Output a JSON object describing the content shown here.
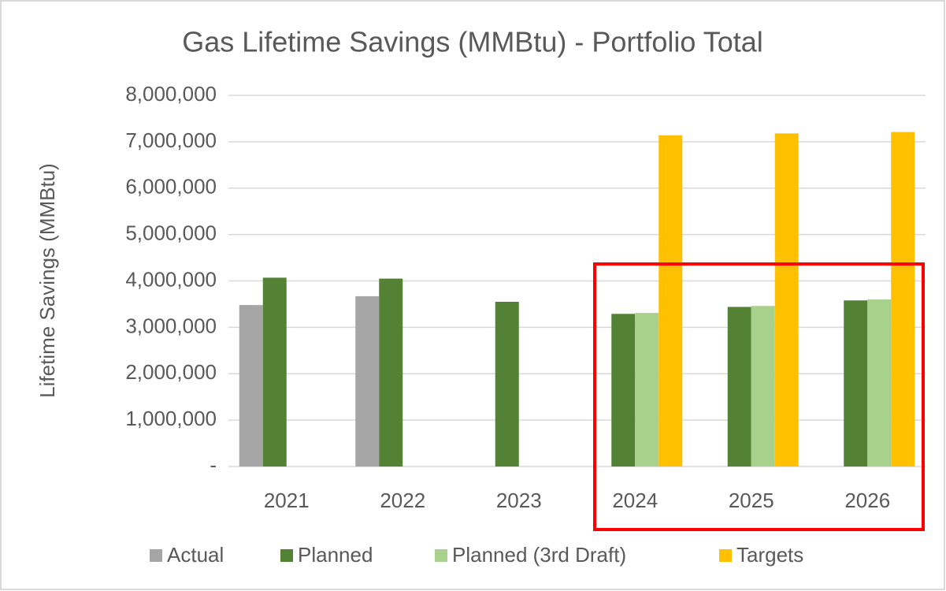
{
  "chart_data": {
    "type": "bar",
    "title": "Gas Lifetime Savings (MMBtu) - Portfolio Total",
    "y_label": "Lifetime Savings (MMBtu)",
    "categories": [
      "2021",
      "2022",
      "2023",
      "2024",
      "2025",
      "2026"
    ],
    "series": [
      {
        "name": "Actual",
        "color": "#a5a5a5",
        "values": [
          3480000,
          3670000,
          null,
          null,
          null,
          null
        ]
      },
      {
        "name": "Planned",
        "color": "#548235",
        "values": [
          4070000,
          4050000,
          3550000,
          3290000,
          3440000,
          3580000
        ]
      },
      {
        "name": "Planned (3rd Draft)",
        "color": "#a9d18e",
        "values": [
          null,
          null,
          null,
          3310000,
          3460000,
          3600000
        ]
      },
      {
        "name": "Targets",
        "color": "#ffc000",
        "values": [
          null,
          null,
          null,
          7140000,
          7180000,
          7210000
        ]
      }
    ],
    "ylim": [
      0,
      8000000
    ],
    "yticks": [
      {
        "value": 0,
        "label": "-"
      },
      {
        "value": 1000000,
        "label": "1,000,000"
      },
      {
        "value": 2000000,
        "label": "2,000,000"
      },
      {
        "value": 3000000,
        "label": "3,000,000"
      },
      {
        "value": 4000000,
        "label": "4,000,000"
      },
      {
        "value": 5000000,
        "label": "5,000,000"
      },
      {
        "value": 6000000,
        "label": "6,000,000"
      },
      {
        "value": 7000000,
        "label": "7,000,000"
      },
      {
        "value": 8000000,
        "label": "8,000,000"
      }
    ],
    "grid": true,
    "legend": "bottom"
  }
}
